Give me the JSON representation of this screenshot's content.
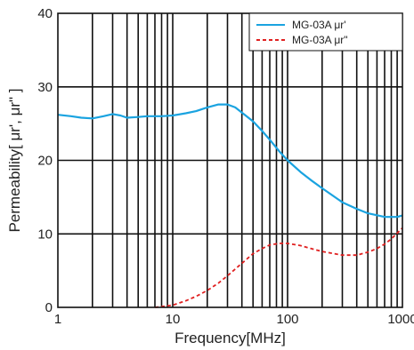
{
  "chart_data": {
    "type": "line",
    "x_scale": "log",
    "xlim": [
      1,
      1000
    ],
    "ylim": [
      0,
      40
    ],
    "xlabel": "Frequency[MHz]",
    "ylabel": "Permeability[ μr', μr\" ]",
    "x_ticks": [
      "1",
      "10",
      "100",
      "1000"
    ],
    "y_ticks": [
      "0",
      "10",
      "20",
      "30",
      "40"
    ],
    "grid": true,
    "legend_position": "top-right",
    "series": [
      {
        "name": "MG-03A μr'",
        "color": "#1aa3e0",
        "style": "solid",
        "points": [
          [
            1,
            26.2
          ],
          [
            1.3,
            26.0
          ],
          [
            1.6,
            25.8
          ],
          [
            2,
            25.7
          ],
          [
            2.5,
            26.0
          ],
          [
            3,
            26.3
          ],
          [
            3.5,
            26.1
          ],
          [
            4,
            25.8
          ],
          [
            5,
            25.9
          ],
          [
            6,
            26.0
          ],
          [
            8,
            26.0
          ],
          [
            10,
            26.1
          ],
          [
            13,
            26.4
          ],
          [
            16,
            26.7
          ],
          [
            20,
            27.2
          ],
          [
            25,
            27.6
          ],
          [
            30,
            27.6
          ],
          [
            35,
            27.2
          ],
          [
            40,
            26.5
          ],
          [
            50,
            25.3
          ],
          [
            60,
            24.0
          ],
          [
            70,
            22.8
          ],
          [
            85,
            21.2
          ],
          [
            100,
            20.0
          ],
          [
            130,
            18.4
          ],
          [
            160,
            17.3
          ],
          [
            200,
            16.2
          ],
          [
            300,
            14.3
          ],
          [
            400,
            13.4
          ],
          [
            500,
            12.8
          ],
          [
            700,
            12.3
          ],
          [
            900,
            12.3
          ],
          [
            1000,
            12.5
          ]
        ]
      },
      {
        "name": "MG-03A μr\"",
        "color": "#e02020",
        "style": "dashed",
        "points": [
          [
            7,
            0
          ],
          [
            8,
            0.1
          ],
          [
            10,
            0.3
          ],
          [
            13,
            0.9
          ],
          [
            16,
            1.5
          ],
          [
            20,
            2.3
          ],
          [
            25,
            3.3
          ],
          [
            30,
            4.3
          ],
          [
            40,
            6.0
          ],
          [
            50,
            7.3
          ],
          [
            60,
            8.0
          ],
          [
            70,
            8.5
          ],
          [
            85,
            8.7
          ],
          [
            100,
            8.7
          ],
          [
            130,
            8.4
          ],
          [
            160,
            8.0
          ],
          [
            200,
            7.6
          ],
          [
            300,
            7.1
          ],
          [
            400,
            7.1
          ],
          [
            500,
            7.5
          ],
          [
            600,
            8.0
          ],
          [
            700,
            8.6
          ],
          [
            800,
            9.3
          ],
          [
            1000,
            10.8
          ]
        ]
      }
    ]
  }
}
